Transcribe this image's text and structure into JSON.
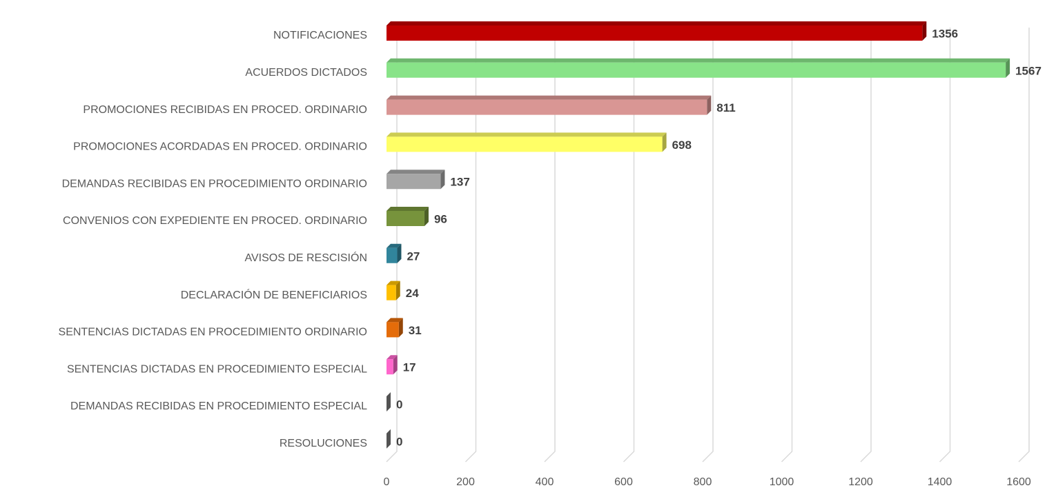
{
  "chart_data": {
    "type": "bar3d_horizontal",
    "categories": [
      "NOTIFICACIONES",
      "ACUERDOS DICTADOS",
      "PROMOCIONES RECIBIDAS EN PROCED. ORDINARIO",
      "PROMOCIONES ACORDADAS EN PROCED. ORDINARIO",
      "DEMANDAS RECIBIDAS EN PROCEDIMIENTO ORDINARIO",
      "CONVENIOS CON EXPEDIENTE EN PROCED. ORDINARIO",
      "AVISOS DE RESCISIÓN",
      "DECLARACIÓN DE BENEFICIARIOS",
      "SENTENCIAS DICTADAS EN PROCEDIMIENTO ORDINARIO",
      "SENTENCIAS DICTADAS EN PROCEDIMIENTO ESPECIAL",
      "DEMANDAS RECIBIDAS EN PROCEDIMIENTO ESPECIAL",
      "RESOLUCIONES"
    ],
    "values": [
      1356,
      1567,
      811,
      698,
      137,
      96,
      27,
      24,
      31,
      17,
      0,
      0
    ],
    "colors": [
      "#c00000",
      "#88e388",
      "#d99694",
      "#ffff66",
      "#a6a6a6",
      "#77933c",
      "#31859c",
      "#ffc000",
      "#e46c0a",
      "#ff66cc",
      "#7f7f7f",
      "#7f7f7f"
    ],
    "xlim": [
      0,
      1600
    ],
    "xticks": [
      0,
      200,
      400,
      600,
      800,
      1000,
      1200,
      1400,
      1600
    ],
    "grid": true
  }
}
